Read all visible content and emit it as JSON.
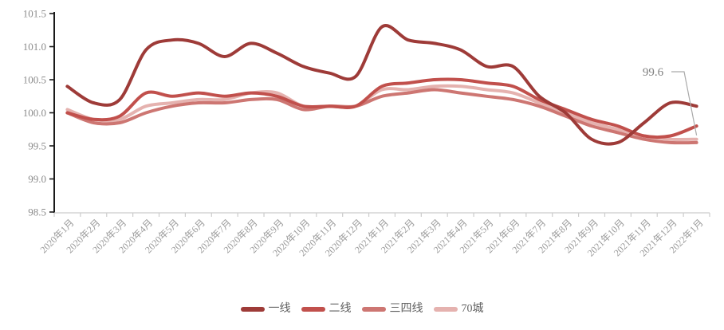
{
  "chart_data": {
    "type": "line",
    "x": [
      "2020年1月",
      "2020年2月",
      "2020年3月",
      "2020年4月",
      "2020年5月",
      "2020年6月",
      "2020年7月",
      "2020年8月",
      "2020年9月",
      "2020年10月",
      "2020年11月",
      "2020年12月",
      "2021年1月",
      "2021年2月",
      "2021年3月",
      "2021年4月",
      "2021年5月",
      "2021年6月",
      "2021年7月",
      "2021年8月",
      "2021年9月",
      "2021年10月",
      "2021年11月",
      "2021年12月",
      "2022年1月"
    ],
    "series": [
      {
        "id": "first-tier",
        "name": "一线",
        "color": "#9e3b38",
        "values": [
          100.4,
          100.15,
          100.2,
          100.95,
          101.1,
          101.05,
          100.85,
          101.05,
          100.9,
          100.7,
          100.6,
          100.55,
          101.3,
          101.1,
          101.05,
          100.95,
          100.7,
          100.7,
          100.25,
          100.0,
          99.6,
          99.55,
          99.85,
          100.15,
          100.1
        ]
      },
      {
        "id": "second-tier",
        "name": "二线",
        "color": "#c1504c",
        "values": [
          100.0,
          99.9,
          99.95,
          100.3,
          100.25,
          100.3,
          100.25,
          100.3,
          100.25,
          100.1,
          100.1,
          100.1,
          100.4,
          100.45,
          100.5,
          100.5,
          100.45,
          100.4,
          100.2,
          100.05,
          99.9,
          99.8,
          99.65,
          99.65,
          99.8
        ]
      },
      {
        "id": "third-fourth-tier",
        "name": "三四线",
        "color": "#cd7672",
        "values": [
          100.0,
          99.85,
          99.85,
          100.0,
          100.1,
          100.15,
          100.15,
          100.2,
          100.2,
          100.05,
          100.1,
          100.1,
          100.25,
          100.3,
          100.35,
          100.3,
          100.25,
          100.2,
          100.1,
          99.95,
          99.8,
          99.7,
          99.6,
          99.55,
          99.55
        ]
      },
      {
        "id": "seventy-city",
        "name": "70城",
        "color": "#e5b2af",
        "values": [
          100.05,
          99.9,
          99.9,
          100.1,
          100.15,
          100.2,
          100.2,
          100.3,
          100.3,
          100.1,
          100.1,
          100.1,
          100.35,
          100.35,
          100.4,
          100.4,
          100.35,
          100.3,
          100.15,
          100.0,
          99.85,
          99.75,
          99.65,
          99.6,
          99.6
        ]
      }
    ],
    "y_axis": {
      "min": 98.5,
      "max": 101.5,
      "step": 0.5,
      "tick_labels": [
        "101.5",
        "101.0",
        "100.5",
        "100.0",
        "99.5",
        "99.0",
        "98.5"
      ]
    },
    "ylim": [
      98.5,
      101.5
    ],
    "grid": false,
    "legend_position": "bottom",
    "annotation": {
      "text": "99.6",
      "value": 99.6,
      "target_series": "70城",
      "target_x": "2022年1月"
    }
  },
  "styles": {
    "background": "#ffffff",
    "y_axis_line_color": "#1a1a1a",
    "x_axis_line_color": "#cccccc",
    "axis_text_color": "#8c8c8c",
    "legend_text_color": "#606060",
    "annotation_color": "#808080",
    "annotation_line_color": "#aaaaaa"
  }
}
